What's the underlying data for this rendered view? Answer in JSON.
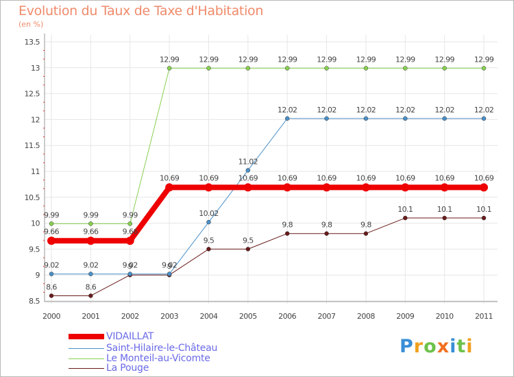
{
  "header": {
    "title": "Evolution du Taux de Taxe d'Habitation",
    "subtitle": "(en %)"
  },
  "brand": {
    "letters": [
      "P",
      "r",
      "o",
      "x",
      "i",
      "t",
      "i"
    ],
    "colors": [
      "#3a8fd6",
      "#f0a020",
      "#6cc24a",
      "#f07020",
      "#3a8fd6",
      "#6cc24a",
      "#f0a020"
    ]
  },
  "chart_data": {
    "type": "line",
    "categories": [
      "2000",
      "2001",
      "2002",
      "2003",
      "2004",
      "2005",
      "2006",
      "2007",
      "2008",
      "2009",
      "2010",
      "2011"
    ],
    "ylim": [
      8.5,
      13.5
    ],
    "yticks": [
      "8.5",
      "9",
      "9.5",
      "10",
      "10.5",
      "11",
      "11.5",
      "12",
      "12.5",
      "13",
      "13.5"
    ],
    "series": [
      {
        "name": "VIDAILLAT",
        "color": "#ee0000",
        "values": [
          9.66,
          9.66,
          9.66,
          10.69,
          10.69,
          10.69,
          10.69,
          10.69,
          10.69,
          10.69,
          10.69,
          10.69
        ]
      },
      {
        "name": "Saint-Hilaire-le-Château",
        "color": "#4a90c8",
        "values": [
          9.02,
          9.02,
          9.02,
          9.02,
          10.02,
          11.02,
          12.02,
          12.02,
          12.02,
          12.02,
          12.02,
          12.02
        ]
      },
      {
        "name": "Le Monteil-au-Vicomte",
        "color": "#88d050",
        "values": [
          9.99,
          9.99,
          9.99,
          12.99,
          12.99,
          12.99,
          12.99,
          12.99,
          12.99,
          12.99,
          12.99,
          12.99
        ]
      },
      {
        "name": "La Pouge",
        "color": "#6a1a1a",
        "values": [
          8.6,
          8.6,
          9,
          9,
          9.5,
          9.5,
          9.8,
          9.8,
          9.8,
          10.1,
          10.1,
          10.1
        ]
      }
    ],
    "point_labels": [
      [
        "9.66",
        "9.66",
        "9.66",
        "10.69",
        "10.69",
        "10.69",
        "10.69",
        "10.69",
        "10.69",
        "10.69",
        "10.69",
        "10.69"
      ],
      [
        "9.02",
        "9.02",
        "9.02",
        "9.02",
        "10.02",
        "11.02",
        "12.02",
        "12.02",
        "12.02",
        "12.02",
        "12.02",
        "12.02"
      ],
      [
        "9.99",
        "9.99",
        "9.99",
        "12.99",
        "12.99",
        "12.99",
        "12.99",
        "12.99",
        "12.99",
        "12.99",
        "12.99",
        "12.99"
      ],
      [
        "8.6",
        "8.6",
        "9",
        "9",
        "9.5",
        "9.5",
        "9.8",
        "9.8",
        "9.8",
        "10.1",
        "10.1",
        "10.1"
      ]
    ]
  }
}
